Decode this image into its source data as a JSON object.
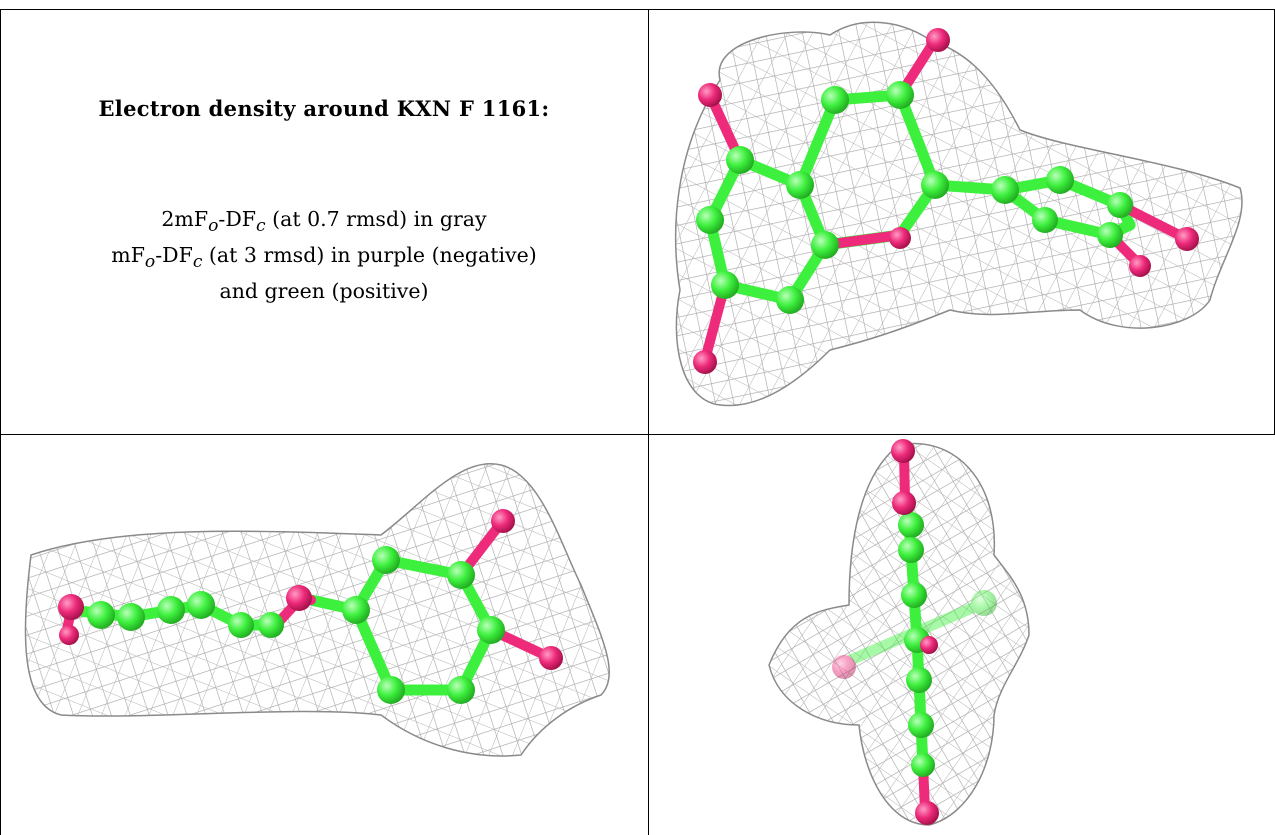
{
  "legend": {
    "title": "Electron density around KXN F 1161:",
    "line1": {
      "a": "2mF",
      "a_sub": "o",
      "b": "-DF",
      "b_sub": "c",
      "rest": " (at 0.7 rmsd) in gray"
    },
    "line2": {
      "a": "mF",
      "a_sub": "o",
      "b": "-DF",
      "b_sub": "c",
      "rest": " (at 3 rmsd) in purple (negative)"
    },
    "line3": "and green (positive)"
  },
  "colors": {
    "mesh": "#9a9a9a",
    "carbon": "#3ef03e",
    "carbon_dark": "#1fb81f",
    "oxygen": "#ee2a7b",
    "oxygen_dark": "#b0124f",
    "border": "#000000"
  },
  "panels": [
    {
      "name": "view-front",
      "icon": "electron-density-mesh-icon"
    },
    {
      "name": "view-side",
      "icon": "electron-density-mesh-icon"
    },
    {
      "name": "view-edge",
      "icon": "electron-density-mesh-icon"
    }
  ]
}
